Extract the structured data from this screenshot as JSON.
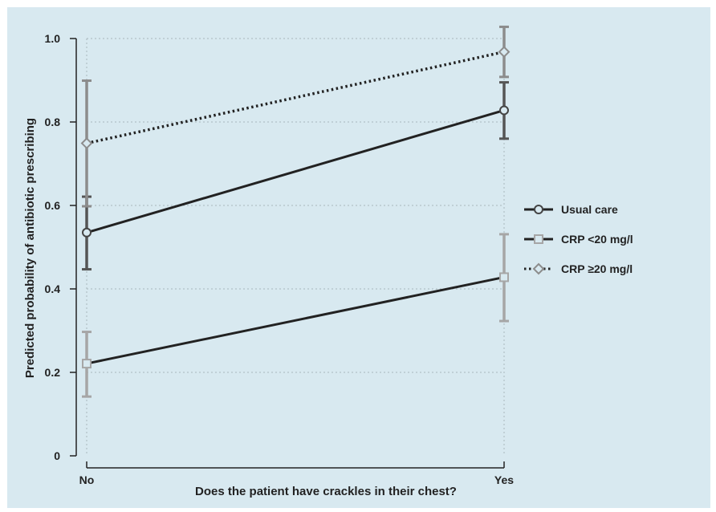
{
  "chart_data": {
    "type": "line",
    "title": "",
    "xlabel": "Does the patient have crackles in their chest?",
    "ylabel": "Predicted probability of antibiotic prescribing",
    "categories": [
      "No",
      "Yes"
    ],
    "ylim": [
      0,
      1.0
    ],
    "yticks": [
      {
        "value": 0,
        "label": "0"
      },
      {
        "value": 0.2,
        "label": "0.2"
      },
      {
        "value": 0.4,
        "label": "0.4"
      },
      {
        "value": 0.6,
        "label": "0.6"
      },
      {
        "value": 0.8,
        "label": "0.8"
      },
      {
        "value": 1.0,
        "label": "1.0"
      }
    ],
    "grid": true,
    "legend_position": "right",
    "series": [
      {
        "name": "Usual care",
        "values": [
          0.535,
          0.828
        ],
        "ci_low": [
          0.447,
          0.76
        ],
        "ci_high": [
          0.621,
          0.895
        ],
        "line_color": "#222222",
        "marker_color": "#444444",
        "error_color": "#555555",
        "line_style": "solid",
        "marker": "circle"
      },
      {
        "name": "CRP <20 mg/l",
        "values": [
          0.221,
          0.428
        ],
        "ci_low": [
          0.142,
          0.323
        ],
        "ci_high": [
          0.297,
          0.531
        ],
        "line_color": "#222222",
        "marker_color": "#a6a6a6",
        "error_color": "#a6a6a6",
        "line_style": "solid",
        "marker": "square"
      },
      {
        "name": "CRP ≥20 mg/l",
        "values": [
          0.749,
          0.968
        ],
        "ci_low": [
          0.598,
          0.908
        ],
        "ci_high": [
          0.899,
          1.028
        ],
        "line_color": "#222222",
        "marker_color": "#8c8c8c",
        "error_color": "#8c8c8c",
        "line_style": "dotted",
        "marker": "diamond"
      }
    ]
  }
}
